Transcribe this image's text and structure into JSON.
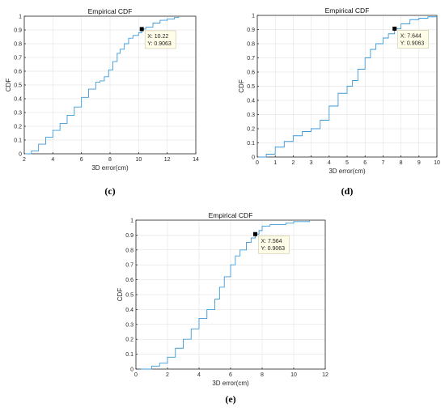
{
  "chart_data": [
    {
      "type": "line",
      "title": "Empirical CDF",
      "xlabel": "3D error(cm)",
      "ylabel": "CDF",
      "caption": "(c)",
      "xlim": [
        2,
        14
      ],
      "ylim": [
        0,
        1
      ],
      "xticks": [
        2,
        4,
        6,
        8,
        10,
        12,
        14
      ],
      "yticks": [
        0,
        0.1,
        0.2,
        0.3,
        0.4,
        0.5,
        0.6,
        0.7,
        0.8,
        0.9,
        1
      ],
      "grid": true,
      "series": [
        {
          "x": [
            2.05,
            2.5,
            3.0,
            3.5,
            4.0,
            4.5,
            5.0,
            5.5,
            6.0,
            6.5,
            7.0,
            7.3,
            7.6,
            7.9,
            8.2,
            8.5,
            8.7,
            9.0,
            9.3,
            9.6,
            10.0,
            10.22,
            10.5,
            11.0,
            11.5,
            12.0,
            12.5,
            12.8
          ],
          "y": [
            0.0,
            0.02,
            0.07,
            0.12,
            0.17,
            0.22,
            0.28,
            0.34,
            0.41,
            0.47,
            0.52,
            0.53,
            0.56,
            0.61,
            0.67,
            0.73,
            0.76,
            0.8,
            0.84,
            0.86,
            0.88,
            0.9063,
            0.92,
            0.95,
            0.97,
            0.98,
            0.99,
            1.0
          ]
        }
      ],
      "datatip": {
        "x": 10.22,
        "y": 0.9063,
        "x_label": "X: 10.22",
        "y_label": "Y: 0.9063"
      }
    },
    {
      "type": "line",
      "title": "Empirical CDF",
      "xlabel": "3D error(cm)",
      "ylabel": "CDF",
      "caption": "(d)",
      "xlim": [
        0,
        10
      ],
      "ylim": [
        0,
        1
      ],
      "xticks": [
        0,
        1,
        2,
        3,
        4,
        5,
        6,
        7,
        8,
        9,
        10
      ],
      "yticks": [
        0,
        0.1,
        0.2,
        0.3,
        0.4,
        0.5,
        0.6,
        0.7,
        0.8,
        0.9,
        1
      ],
      "grid": true,
      "series": [
        {
          "x": [
            0.05,
            0.5,
            1.0,
            1.5,
            2.0,
            2.5,
            3.0,
            3.5,
            4.0,
            4.5,
            5.0,
            5.3,
            5.6,
            6.0,
            6.3,
            6.6,
            7.0,
            7.3,
            7.644,
            8.0,
            8.5,
            9.0,
            9.5,
            10.0
          ],
          "y": [
            0.0,
            0.02,
            0.07,
            0.11,
            0.15,
            0.18,
            0.2,
            0.26,
            0.36,
            0.45,
            0.5,
            0.54,
            0.62,
            0.7,
            0.76,
            0.8,
            0.84,
            0.87,
            0.9063,
            0.94,
            0.97,
            0.98,
            0.99,
            0.99
          ]
        }
      ],
      "datatip": {
        "x": 7.644,
        "y": 0.9063,
        "x_label": "X: 7.644",
        "y_label": "Y: 0.9063"
      }
    },
    {
      "type": "line",
      "title": "Empirical CDF",
      "xlabel": "3D error(cm)",
      "ylabel": "CDF",
      "caption": "(e)",
      "xlim": [
        0,
        12
      ],
      "ylim": [
        0,
        1
      ],
      "xticks": [
        0,
        2,
        4,
        6,
        8,
        10,
        12
      ],
      "yticks": [
        0,
        0.1,
        0.2,
        0.3,
        0.4,
        0.5,
        0.6,
        0.7,
        0.8,
        0.9,
        1
      ],
      "grid": true,
      "series": [
        {
          "x": [
            0.3,
            1.0,
            1.5,
            2.0,
            2.5,
            3.0,
            3.5,
            4.0,
            4.5,
            5.0,
            5.3,
            5.6,
            6.0,
            6.3,
            6.6,
            7.0,
            7.3,
            7.564,
            7.8,
            8.0,
            8.5,
            9.0,
            9.5,
            10.0,
            10.5,
            11.0
          ],
          "y": [
            0.0,
            0.02,
            0.04,
            0.08,
            0.14,
            0.2,
            0.27,
            0.34,
            0.4,
            0.47,
            0.55,
            0.62,
            0.7,
            0.76,
            0.8,
            0.85,
            0.88,
            0.9063,
            0.93,
            0.96,
            0.97,
            0.97,
            0.98,
            0.99,
            0.99,
            1.0
          ]
        }
      ],
      "datatip": {
        "x": 7.564,
        "y": 0.9063,
        "x_label": "X: 7.564",
        "y_label": "Y: 0.9063"
      }
    }
  ]
}
